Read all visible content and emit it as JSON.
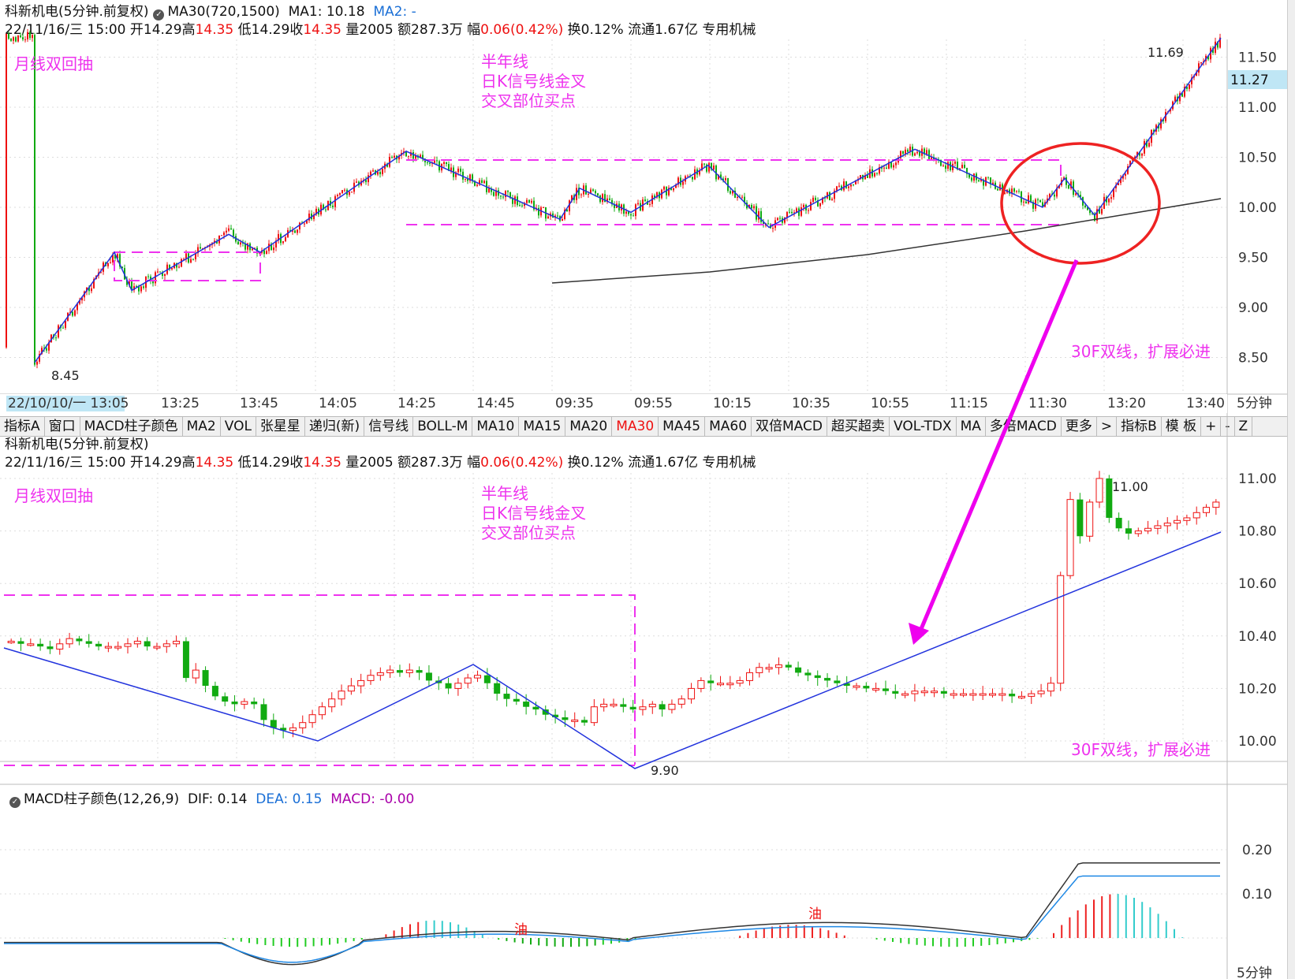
{
  "stock": {
    "name": "科新机电",
    "period_label": "(5分钟.前复权)",
    "indicator_params": "MA30(720,1500)",
    "ma1_label": "MA1: 10.18",
    "ma2_label": "MA2: -",
    "info": {
      "date": "22/11/16/三 15:00",
      "open_label": "开14.29",
      "high_prefix": "高",
      "high": "14.35",
      "low_label": "低14.29",
      "close_prefix": "收",
      "close": "14.35",
      "volume_label": "量2005",
      "amount_label": "额287.3万",
      "change_prefix": "幅",
      "change": "0.06(0.42%)",
      "turnover_label": "换0.12%",
      "float_label": "流通1.67亿",
      "sector": "专用机械"
    }
  },
  "upper_chart": {
    "annotations": {
      "left": "月线双回抽",
      "mid1": "半年线",
      "mid2": "日K信号线金叉",
      "mid3": "交叉部位买点",
      "right": "30F双线，扩展必进",
      "high_mark": "11.69",
      "low_mark": "8.45",
      "price_tag": "11.27"
    },
    "y_ticks": [
      "11.50",
      "11.00",
      "10.50",
      "10.00",
      "9.50",
      "9.00",
      "8.50"
    ],
    "x_first": "22/10/10/一 13:05",
    "x_ticks": [
      "13:25",
      "13:45",
      "14:05",
      "14:25",
      "14:45",
      "09:35",
      "09:55",
      "10:15",
      "10:35",
      "10:55",
      "11:15",
      "11:30",
      "13:20",
      "13:40"
    ],
    "period": "5分钟"
  },
  "toolbar": {
    "items": [
      "指标A",
      "窗口",
      "MACD柱子颜色",
      "MA2",
      "VOL",
      "张星星",
      "递归(新)",
      "信号线",
      "BOLL-M",
      "MA10",
      "MA15",
      "MA20",
      "MA30",
      "MA45",
      "MA60",
      "双倍MACD",
      "超买超卖",
      "VOL-TDX",
      "MA",
      "多倍MACD",
      "更多",
      ">",
      "指标B",
      "模 板",
      "+",
      "-",
      "Z"
    ],
    "active": "MA30"
  },
  "lower_chart": {
    "annotations": {
      "left": "月线双回抽",
      "mid1": "半年线",
      "mid2": "日K信号线金叉",
      "mid3": "交叉部位买点",
      "right": "30F双线，扩展必进",
      "high_mark": "11.00",
      "low_mark": "9.90"
    },
    "y_ticks": [
      "11.00",
      "10.80",
      "10.60",
      "10.40",
      "10.20",
      "10.00"
    ]
  },
  "macd": {
    "label": "MACD柱子颜色(12,26,9)",
    "dif": "DIF: 0.14",
    "dea": "DEA: 0.15",
    "macd": "MACD: -0.00",
    "y_ticks": [
      "0.20",
      "0.10"
    ],
    "signals": [
      "油",
      "油",
      "油"
    ],
    "period": "5分钟"
  },
  "chart_data": {
    "type": "candlestick",
    "upper_zigzag": [
      [
        8.45,
        0
      ],
      [
        9.55,
        1
      ],
      [
        9.17,
        2
      ],
      [
        9.73,
        3
      ],
      [
        9.55,
        4
      ],
      [
        10.56,
        5
      ],
      [
        9.88,
        6
      ],
      [
        10.19,
        7
      ],
      [
        9.95,
        8
      ],
      [
        10.42,
        9
      ],
      [
        9.8,
        10
      ],
      [
        10.58,
        11
      ],
      [
        10.0,
        12
      ],
      [
        10.29,
        13
      ],
      [
        9.92,
        14
      ],
      [
        11.69,
        15
      ]
    ],
    "lower_candles_close": [
      10.38,
      10.37,
      10.37,
      10.36,
      10.35,
      10.37,
      10.39,
      10.38,
      10.37,
      10.36,
      10.36,
      10.36,
      10.37,
      10.38,
      10.36,
      10.36,
      10.37,
      10.38,
      10.24,
      10.27,
      10.21,
      10.17,
      10.15,
      10.14,
      10.15,
      10.14,
      10.08,
      10.05,
      10.04,
      10.05,
      10.07,
      10.1,
      10.13,
      10.16,
      10.19,
      10.21,
      10.23,
      10.25,
      10.26,
      10.27,
      10.26,
      10.27,
      10.26,
      10.23,
      10.22,
      10.2,
      10.22,
      10.24,
      10.25,
      10.22,
      10.18,
      10.16,
      10.15,
      10.13,
      10.12,
      10.1,
      10.09,
      10.08,
      10.08,
      10.07,
      10.13,
      10.14,
      10.14,
      10.13,
      10.12,
      10.13,
      10.14,
      10.12,
      10.14,
      10.16,
      10.2,
      10.23,
      10.22,
      10.22,
      10.22,
      10.23,
      10.26,
      10.28,
      10.28,
      10.29,
      10.28,
      10.26,
      10.25,
      10.24,
      10.23,
      10.22,
      10.21,
      10.21,
      10.2,
      10.2,
      10.19,
      10.18,
      10.18,
      10.19,
      10.19,
      10.19,
      10.18,
      10.18,
      10.18,
      10.18,
      10.18,
      10.18,
      10.18,
      10.17,
      10.17,
      10.18,
      10.19,
      10.22,
      10.63,
      10.92,
      10.78,
      10.91,
      11.0,
      10.85,
      10.81,
      10.79,
      10.8,
      10.81,
      10.82,
      10.83,
      10.84,
      10.85,
      10.87,
      10.89,
      10.91
    ],
    "lower_ylim": [
      9.9,
      11.05
    ]
  }
}
